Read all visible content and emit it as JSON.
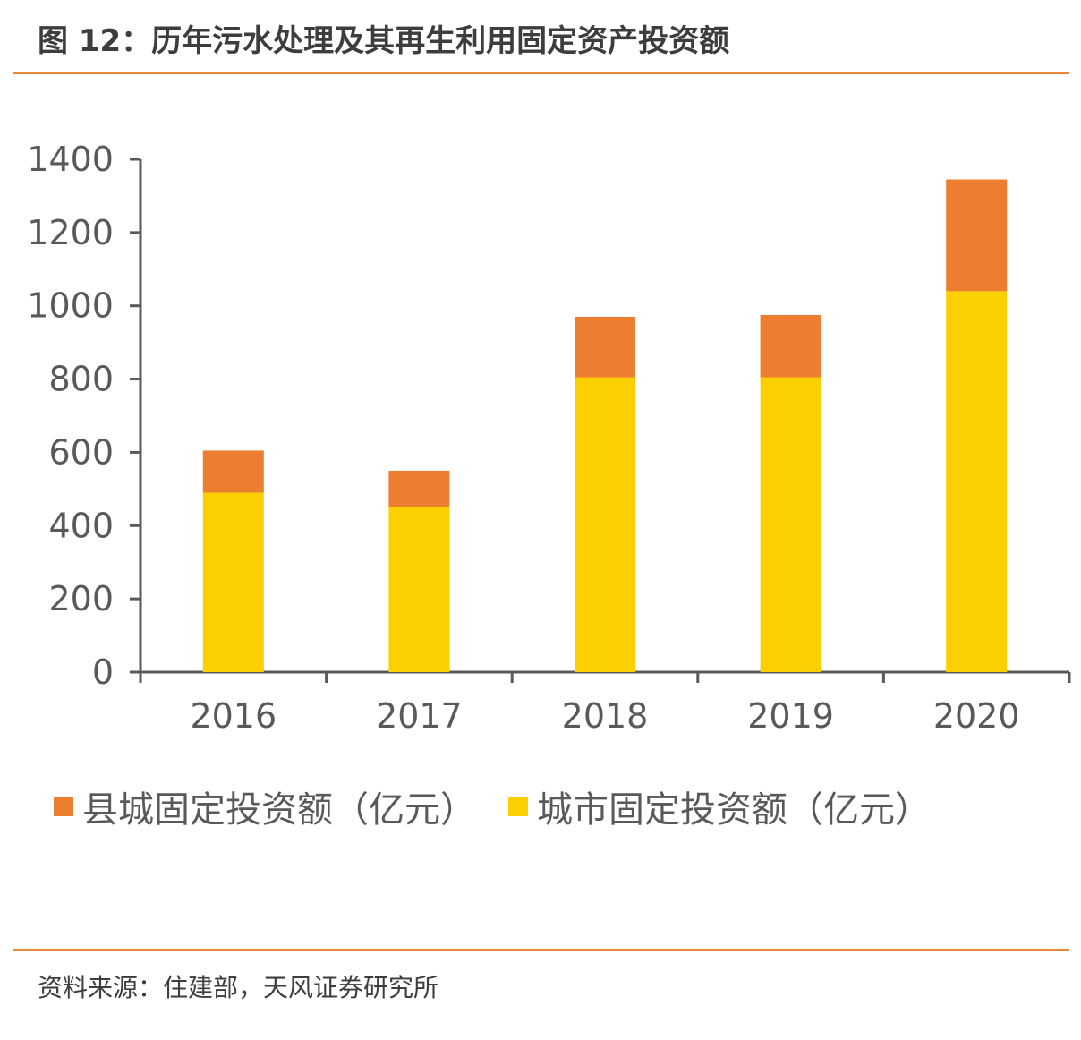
{
  "header": {
    "title": "图 12：历年污水处理及其再生利用固定资产投资额"
  },
  "footer": {
    "source": "资料来源：住建部，天风证券研究所"
  },
  "colors": {
    "county": "#ed7d31",
    "city": "#fcd000",
    "accent_rule": "#e8883a",
    "axis": "#595959"
  },
  "chart_data": {
    "type": "bar",
    "stacked": true,
    "categories": [
      "2016",
      "2017",
      "2018",
      "2019",
      "2020"
    ],
    "series": [
      {
        "name": "城市固定投资额（亿元）",
        "values": [
          490,
          450,
          805,
          805,
          1040
        ]
      },
      {
        "name": "县城固定投资额（亿元）",
        "values": [
          115,
          100,
          165,
          170,
          305
        ]
      }
    ],
    "legend_order": [
      "县城固定投资额（亿元）",
      "城市固定投资额（亿元）"
    ],
    "ylim": [
      0,
      1400
    ],
    "yticks": [
      0,
      200,
      400,
      600,
      800,
      1000,
      1200,
      1400
    ],
    "grid": false,
    "legend_position": "bottom"
  }
}
